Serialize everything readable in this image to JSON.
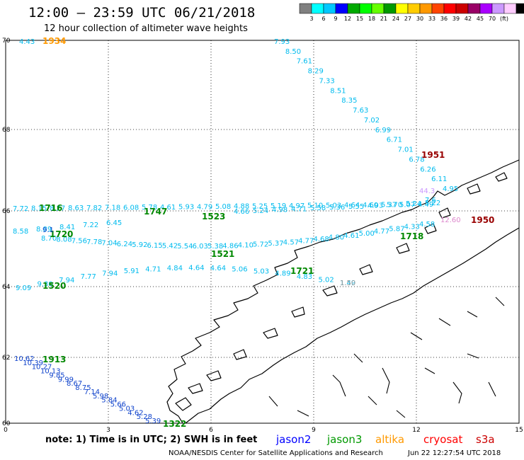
{
  "header": {
    "title": "12:00 – 23:59 UTC 06/21/2018",
    "subtitle": "12 hour collection of altimeter wave heights"
  },
  "colorbar": {
    "colors": [
      "#808080",
      "#00ffff",
      "#00c8ff",
      "#0000ff",
      "#00aa00",
      "#00ff00",
      "#66ff00",
      "#009900",
      "#ffff00",
      "#ffcc00",
      "#ff9900",
      "#ff4400",
      "#ff0000",
      "#cc0000",
      "#990066",
      "#aa00ff",
      "#cc99ff",
      "#ffccff",
      "#000000"
    ],
    "ticks": [
      "3",
      "6",
      "9",
      "12",
      "15",
      "18",
      "21",
      "24",
      "27",
      "30",
      "33",
      "36",
      "39",
      "42",
      "45",
      "70",
      "(ft)"
    ]
  },
  "map": {
    "lon_ticks": [
      "0",
      "3",
      "6",
      "9",
      "12",
      "15"
    ],
    "lat_ticks": [
      "70",
      "68",
      "66",
      "64",
      "62",
      "60"
    ]
  },
  "tracks": [
    {
      "color": "#00bbee",
      "labels": [
        "7.93",
        "8.50",
        "7.61",
        "8.29",
        "7.33",
        "8.51",
        "8.35",
        "7.63",
        "7.02",
        "6.99",
        "6.71",
        "7.01",
        "6.78",
        "6.26",
        "6.11",
        "4.95"
      ]
    },
    {
      "color": "#00bbee",
      "labels": [
        "7.72",
        "8.15",
        "8.27",
        "8.63",
        "7.82",
        "7.18",
        "6.08",
        "5.78",
        "4.61",
        "5.93",
        "4.79",
        "5.08",
        "4.88",
        "5.25",
        "5.19",
        "4.97",
        "5.10",
        "5.03",
        "4.64",
        "4.60",
        "5.37",
        "5.07",
        "4.49"
      ]
    },
    {
      "color": "#00bbee",
      "labels": [
        "4.66",
        "5.24",
        "4.98",
        "4.71",
        "5.58",
        "5.36",
        "5.55",
        "4.93",
        "5.70",
        "5.24",
        "5.22"
      ]
    },
    {
      "color": "#00bbee",
      "labels": [
        "8.58",
        "8.89",
        "8.41",
        "7.22",
        "6.45"
      ]
    },
    {
      "color": "#00bbee",
      "labels": [
        "8.70",
        "8.08",
        "7.56",
        "7.78",
        "7.04",
        "6.24",
        "5.92",
        "6.15",
        "5.42",
        "5.54",
        "6.03",
        "5.38",
        "4.86",
        "4.10",
        "5.72",
        "5.37",
        "4.57",
        "4.77",
        "4.68",
        "4.80",
        "4.61",
        "5.00",
        "4.77",
        "5.87",
        "4.33",
        "4.58"
      ]
    },
    {
      "color": "#00bbee",
      "labels": [
        "9.09",
        "9.30",
        "7.94",
        "7.77",
        "7.94",
        "5.91",
        "4.71",
        "4.84",
        "4.64",
        "4.64",
        "5.06",
        "5.03",
        "4.89",
        "4.83",
        "5.02",
        "1.49"
      ]
    },
    {
      "color": "#1144cc",
      "labels": [
        "10.62",
        "10.39",
        "10.27",
        "10.13",
        "9.85",
        "9.99",
        "8.67",
        "8.75",
        "7.14",
        "5.98",
        "5.84",
        "5.66",
        "5.03",
        "4.62",
        "5.28",
        "5.39"
      ]
    }
  ],
  "time_labels": [
    {
      "text": "1934",
      "color": "#ff9900"
    },
    {
      "text": "1951",
      "color": "#990000"
    },
    {
      "text": "1950",
      "color": "#990000"
    },
    {
      "text": "1716",
      "color": "#008800"
    },
    {
      "text": "1747",
      "color": "#008800"
    },
    {
      "text": "1523",
      "color": "#008800"
    },
    {
      "text": "1718",
      "color": "#008800"
    },
    {
      "text": "1720",
      "color": "#008800"
    },
    {
      "text": "1521",
      "color": "#008800"
    },
    {
      "text": "1721",
      "color": "#008800"
    },
    {
      "text": "1520",
      "color": "#008800"
    },
    {
      "text": "1913",
      "color": "#008800"
    },
    {
      "text": "1322",
      "color": "#008800"
    }
  ],
  "extra_labels": [
    {
      "text": "4.43",
      "color": "#00bbee"
    },
    {
      "text": "44.3",
      "color": "#cc99ff"
    },
    {
      "text": "12.60",
      "color": "#dd88cc"
    },
    {
      "text": "7.6",
      "color": "#00bbee"
    },
    {
      "text": "9.1",
      "color": "#1144cc"
    },
    {
      "text": "1.50",
      "color": "#999999"
    }
  ],
  "footer": {
    "note": "note: 1) Time is in UTC; 2) SWH is in feet",
    "satellites": [
      {
        "name": "jason2",
        "color": "#0000ff"
      },
      {
        "name": "jason3",
        "color": "#009900"
      },
      {
        "name": "altika",
        "color": "#ff9900"
      },
      {
        "name": "cryosat",
        "color": "#ff0000"
      },
      {
        "name": "s3a",
        "color": "#cc0000"
      }
    ],
    "credit": "NOAA/NESDIS Center for Satellite Applications and Research",
    "timestamp": "Jun 22 12:27:54 UTC 2018"
  }
}
